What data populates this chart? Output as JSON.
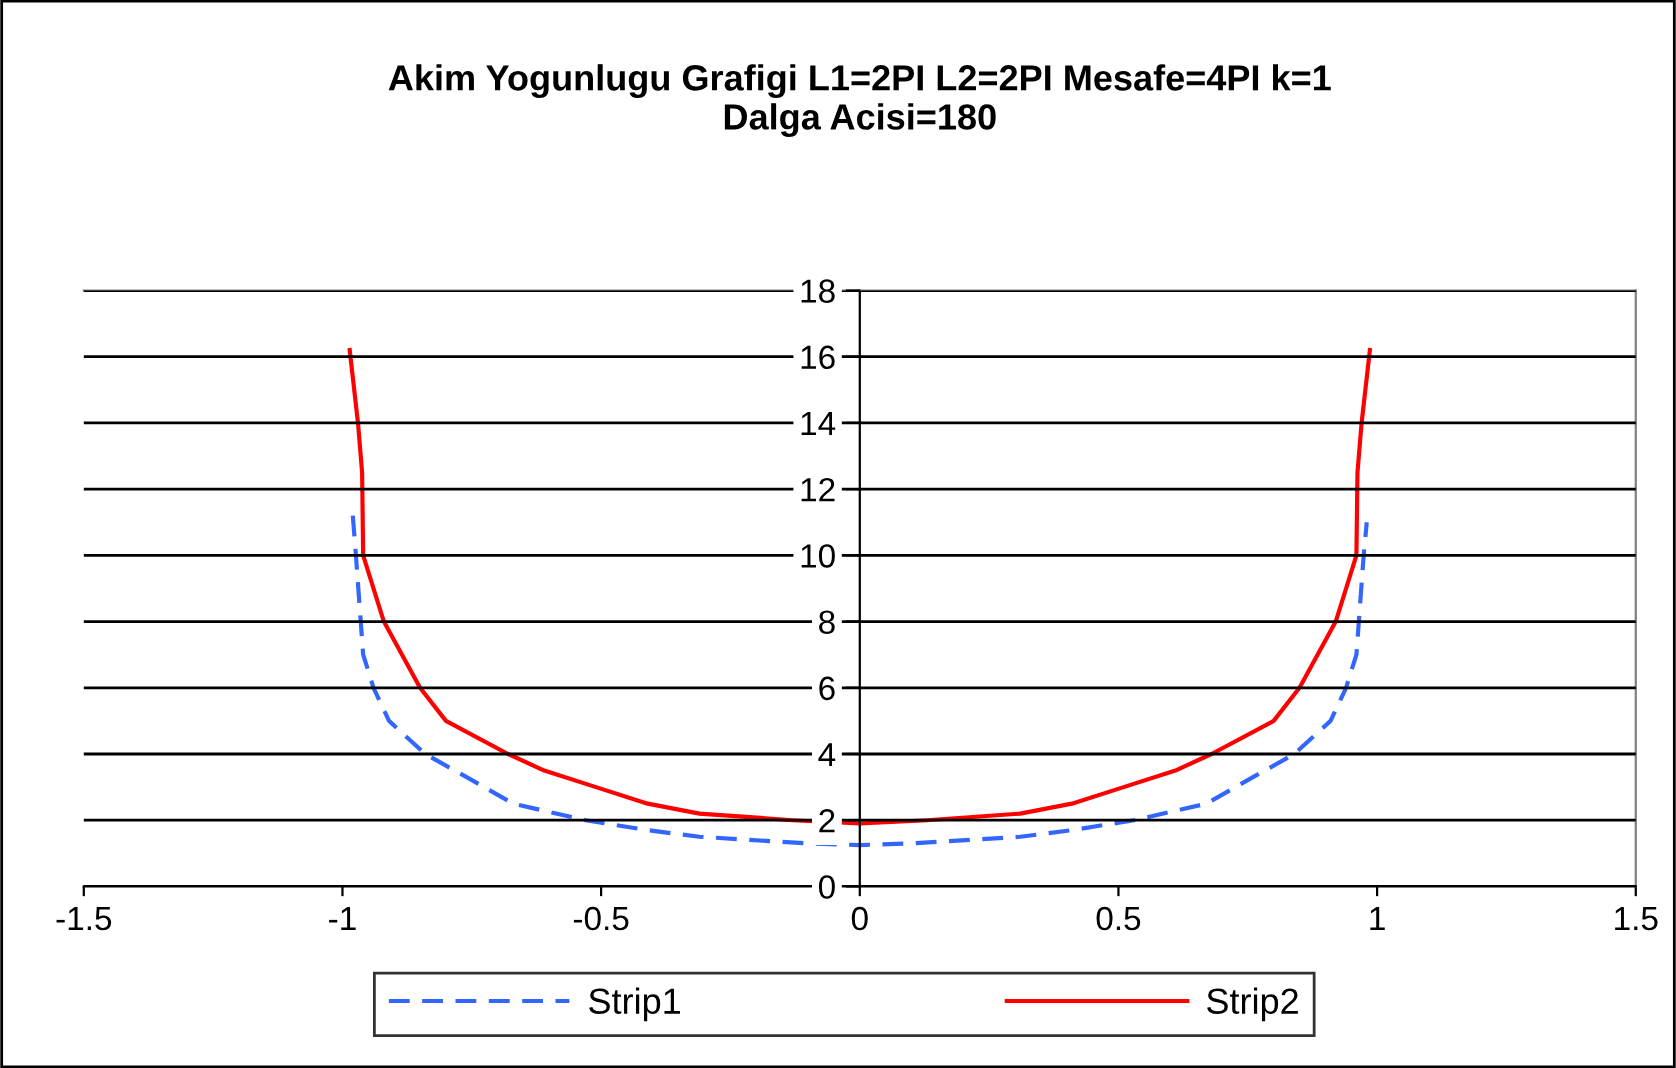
{
  "chart_data": {
    "type": "line",
    "title": "Akim Yogunlugu Grafigi L1=2PI L2=2PI Mesafe=4PI k=1\nDalga Acisi=180",
    "series": [
      {
        "name": "Strip1",
        "color": "#3366ff",
        "line_style": "dashed",
        "x": [
          -0.98,
          -0.974,
          -0.96,
          -0.94,
          -0.91,
          -0.84,
          -0.76,
          -0.67,
          -0.53,
          -0.41,
          -0.31,
          -0.1,
          0,
          0.1,
          0.31,
          0.41,
          0.53,
          0.67,
          0.76,
          0.84,
          0.91,
          0.94,
          0.96,
          0.974,
          0.98
        ],
        "values": [
          11.2,
          10,
          7,
          6,
          5,
          4,
          3.3,
          2.5,
          2,
          1.7,
          1.5,
          1.3,
          1.25,
          1.3,
          1.5,
          1.7,
          2,
          2.5,
          3.3,
          4,
          5,
          6,
          7,
          10,
          11
        ]
      },
      {
        "name": "Strip2",
        "color": "#ff0000",
        "line_style": "solid",
        "x": [
          -0.986,
          -0.97,
          -0.962,
          -0.96,
          -0.92,
          -0.85,
          -0.8,
          -0.68,
          -0.61,
          -0.51,
          -0.41,
          -0.31,
          -0.13,
          0,
          0.13,
          0.31,
          0.41,
          0.51,
          0.61,
          0.68,
          0.8,
          0.85,
          0.92,
          0.96,
          0.962,
          0.97,
          0.986
        ],
        "values": [
          16.2,
          14,
          12.5,
          10,
          8,
          6,
          5,
          4,
          3.5,
          3,
          2.5,
          2.2,
          2,
          1.9,
          2,
          2.2,
          2.5,
          3,
          3.5,
          4,
          5,
          6,
          8,
          10,
          12.5,
          14,
          16.2
        ]
      }
    ],
    "xlim": [
      -1.5,
      1.5
    ],
    "xticks": [
      -1.5,
      -1,
      -0.5,
      0,
      0.5,
      1,
      1.5
    ],
    "ylim": [
      0,
      18
    ],
    "yticks": [
      0,
      2,
      4,
      6,
      8,
      10,
      12,
      14,
      16,
      18
    ],
    "grid": "y",
    "legend": "bottom",
    "marker": "none"
  }
}
